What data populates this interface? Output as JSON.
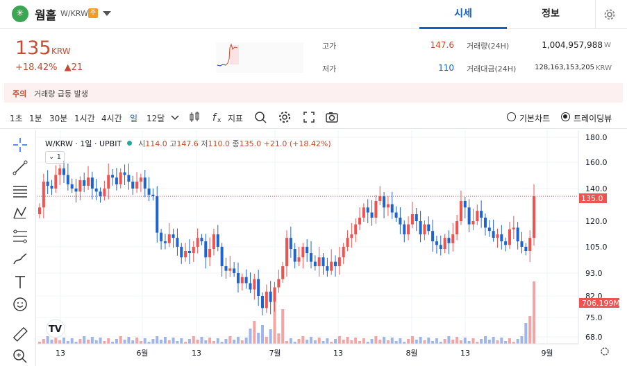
{
  "header": {
    "logo_glyph": "✳",
    "coin_name": "웜홀",
    "pair": "W/KRW",
    "caution_badge": "주",
    "tabs": [
      {
        "label": "시세"
      },
      {
        "label": "정보"
      }
    ]
  },
  "price": {
    "current": "135",
    "unit": "KRW",
    "change_rate": "+18.42%",
    "change_amount": "▲21",
    "high_label": "고가",
    "high_value": "147.6",
    "low_label": "저가",
    "low_value": "110",
    "volume_label": "거래량(24H)",
    "volume_value": "1,004,957,988",
    "volume_unit": "W",
    "amount_label": "거래대금(24H)",
    "amount_value": "128,163,153,205",
    "amount_unit": "KRW"
  },
  "caution": {
    "label": "주의",
    "text": "거래량 급등 발생"
  },
  "toolbar": {
    "timeframes": [
      "1초",
      "1분",
      "30분",
      "1시간",
      "4시간",
      "일",
      "12달"
    ],
    "active_timeframe": "일",
    "indicator_label": "지표",
    "basic_chart_label": "기본차트",
    "tradingview_label": "트레이딩뷰"
  },
  "legend": {
    "title": "W/KRW · 1일 · UPBIT",
    "open_label": "시",
    "open": "114.0",
    "high_label": "고",
    "high": "147.6",
    "low_label": "저",
    "low": "110.0",
    "close_label": "종",
    "close": "135.0",
    "change": "+21.0 (+18.42%)",
    "collapse": "1"
  },
  "colors": {
    "up": "#ef5350",
    "down": "#1e63d0",
    "accent": "#1261c4",
    "price_red": "#c84a31"
  },
  "chart_data": {
    "type": "candlestick",
    "y_ticks": [
      "180.0",
      "160.0",
      "140.0",
      "120.0",
      "105.0",
      "93.0",
      "82.0",
      "75.0",
      "68.0"
    ],
    "x_ticks": [
      "13",
      "6월",
      "13",
      "7월",
      "13",
      "8월",
      "13",
      "9월"
    ],
    "last_price_label": "135.0",
    "volume_label": "706.199M",
    "log_scale": true
  }
}
